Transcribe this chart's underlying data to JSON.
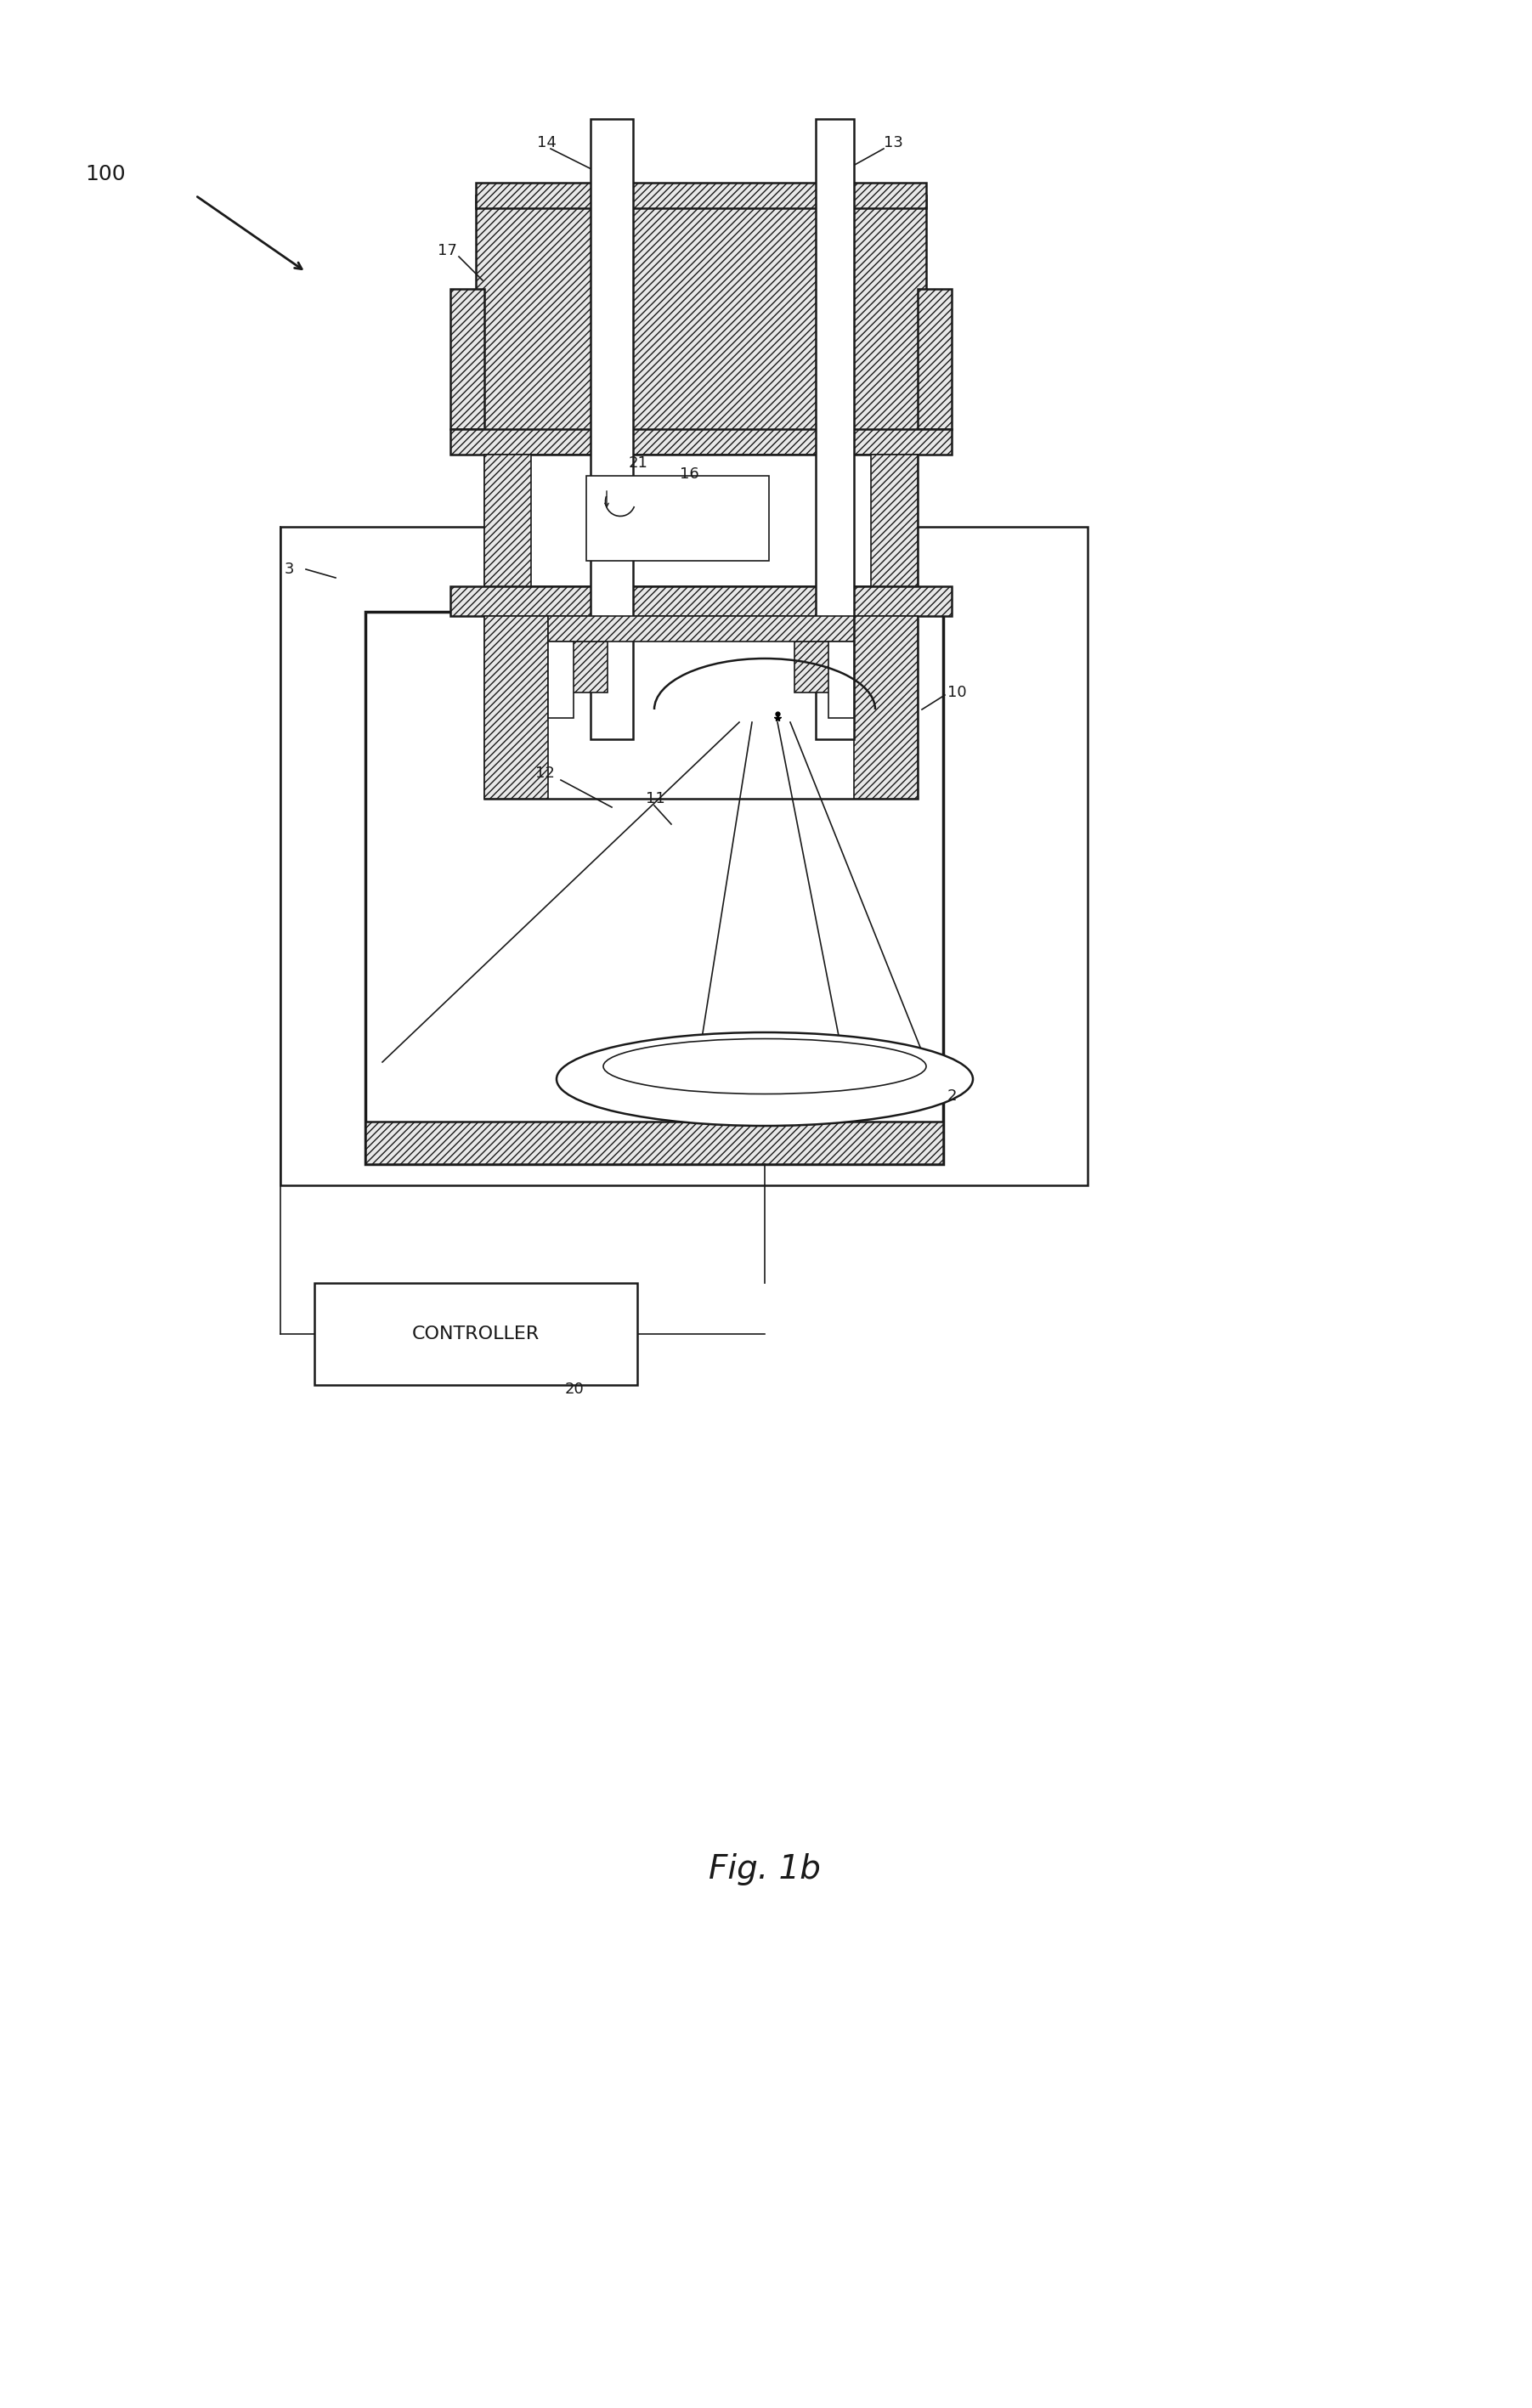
{
  "background_color": "#ffffff",
  "line_color": "#1a1a1a",
  "fig_label": "Fig. 1b",
  "fontsize_label": 13,
  "fontsize_fig": 28
}
